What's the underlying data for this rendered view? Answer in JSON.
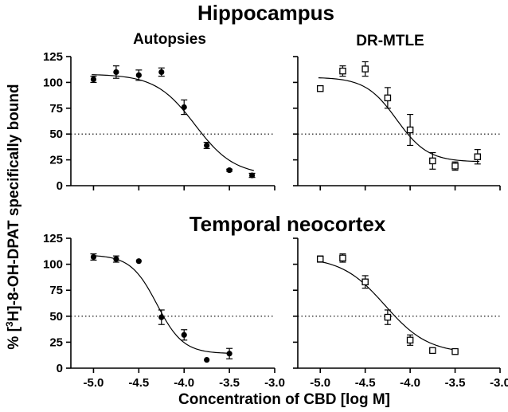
{
  "figure": {
    "section_titles": [
      "Hippocampus",
      "Temporal neocortex"
    ],
    "y_axis_title": "% [3H]-8-OH-DPAT specifically bound",
    "y_axis_title_parts": {
      "prefix": "% [",
      "superscript": "3",
      "suffix": "H]-8-OH-DPAT specifically bound"
    },
    "x_axis_title": "Concentration of CBD [log M]"
  },
  "chart_data": [
    {
      "type": "scatter",
      "section": "Hippocampus",
      "title": "Autopsies",
      "marker": "filled-circle",
      "xlim": [
        -5.25,
        -3.0
      ],
      "ylim": [
        0,
        125
      ],
      "xticks": [
        -5.0,
        -4.5,
        -4.0,
        -3.5,
        -3.0
      ],
      "yticks": [
        0,
        25,
        50,
        75,
        100,
        125
      ],
      "xtick_labels": [],
      "ytick_labels": [
        "0",
        "25",
        "50",
        "75",
        "100",
        "125"
      ],
      "reference_line": 50,
      "fit": {
        "top": 108,
        "bottom": 10,
        "logIC50": -3.88,
        "hill": -2.0
      },
      "points": [
        {
          "x": -5.0,
          "y": 103,
          "err": 3
        },
        {
          "x": -4.75,
          "y": 110,
          "err": 6
        },
        {
          "x": -4.5,
          "y": 107,
          "err": 5
        },
        {
          "x": -4.25,
          "y": 110,
          "err": 4
        },
        {
          "x": -4.0,
          "y": 76,
          "err": 7
        },
        {
          "x": -3.75,
          "y": 39,
          "err": 3
        },
        {
          "x": -3.5,
          "y": 15,
          "err": 1
        },
        {
          "x": -3.25,
          "y": 10,
          "err": 2
        }
      ]
    },
    {
      "type": "scatter",
      "section": "Hippocampus",
      "title": "DR-MTLE",
      "marker": "open-square",
      "xlim": [
        -5.25,
        -3.0
      ],
      "ylim": [
        0,
        125
      ],
      "xticks": [
        -5.0,
        -4.5,
        -4.0,
        -3.5,
        -3.0
      ],
      "yticks": [
        0,
        25,
        50,
        75,
        100,
        125
      ],
      "xtick_labels": [],
      "ytick_labels": [],
      "reference_line": 50,
      "fit": {
        "top": 105,
        "bottom": 23,
        "logIC50": -4.15,
        "hill": -2.5
      },
      "points": [
        {
          "x": -5.0,
          "y": 94,
          "err": 0
        },
        {
          "x": -4.75,
          "y": 111,
          "err": 5
        },
        {
          "x": -4.5,
          "y": 113,
          "err": 7
        },
        {
          "x": -4.25,
          "y": 85,
          "err": 10
        },
        {
          "x": -4.0,
          "y": 54,
          "err": 15
        },
        {
          "x": -3.75,
          "y": 24,
          "err": 8
        },
        {
          "x": -3.5,
          "y": 19,
          "err": 4
        },
        {
          "x": -3.25,
          "y": 28,
          "err": 7
        }
      ]
    },
    {
      "type": "scatter",
      "section": "Temporal neocortex",
      "title": "",
      "marker": "filled-circle",
      "xlim": [
        -5.25,
        -3.0
      ],
      "ylim": [
        0,
        125
      ],
      "xticks": [
        -5.0,
        -4.5,
        -4.0,
        -3.5,
        -3.0
      ],
      "yticks": [
        0,
        25,
        50,
        75,
        100,
        125
      ],
      "xtick_labels": [
        "-5.0",
        "-4.5",
        "-4.0",
        "-3.5",
        "-3.0"
      ],
      "ytick_labels": [
        "0",
        "25",
        "50",
        "75",
        "100",
        "125"
      ],
      "reference_line": 50,
      "fit": {
        "top": 109,
        "bottom": 14,
        "logIC50": -4.3,
        "hill": -3.0
      },
      "points": [
        {
          "x": -5.0,
          "y": 107,
          "err": 3
        },
        {
          "x": -4.75,
          "y": 105,
          "err": 3
        },
        {
          "x": -4.5,
          "y": 103,
          "err": 0
        },
        {
          "x": -4.25,
          "y": 49,
          "err": 7
        },
        {
          "x": -4.0,
          "y": 32,
          "err": 5
        },
        {
          "x": -3.75,
          "y": 8,
          "err": 0
        },
        {
          "x": -3.5,
          "y": 14,
          "err": 5
        }
      ]
    },
    {
      "type": "scatter",
      "section": "Temporal neocortex",
      "title": "",
      "marker": "open-square",
      "xlim": [
        -5.25,
        -3.0
      ],
      "ylim": [
        0,
        125
      ],
      "xticks": [
        -5.0,
        -4.5,
        -4.0,
        -3.5,
        -3.0
      ],
      "yticks": [
        0,
        25,
        50,
        75,
        100,
        125
      ],
      "xtick_labels": [
        "-5.0",
        "-4.5",
        "-4.0",
        "-3.5",
        "-3.0"
      ],
      "ytick_labels": [],
      "reference_line": 50,
      "fit": {
        "top": 107,
        "bottom": 14,
        "logIC50": -4.28,
        "hill": -1.8
      },
      "points": [
        {
          "x": -5.0,
          "y": 105,
          "err": 3
        },
        {
          "x": -4.75,
          "y": 106,
          "err": 4
        },
        {
          "x": -4.5,
          "y": 83,
          "err": 6
        },
        {
          "x": -4.25,
          "y": 49,
          "err": 7
        },
        {
          "x": -4.0,
          "y": 27,
          "err": 5
        },
        {
          "x": -3.75,
          "y": 17,
          "err": 2
        },
        {
          "x": -3.5,
          "y": 16,
          "err": 1
        }
      ]
    }
  ]
}
